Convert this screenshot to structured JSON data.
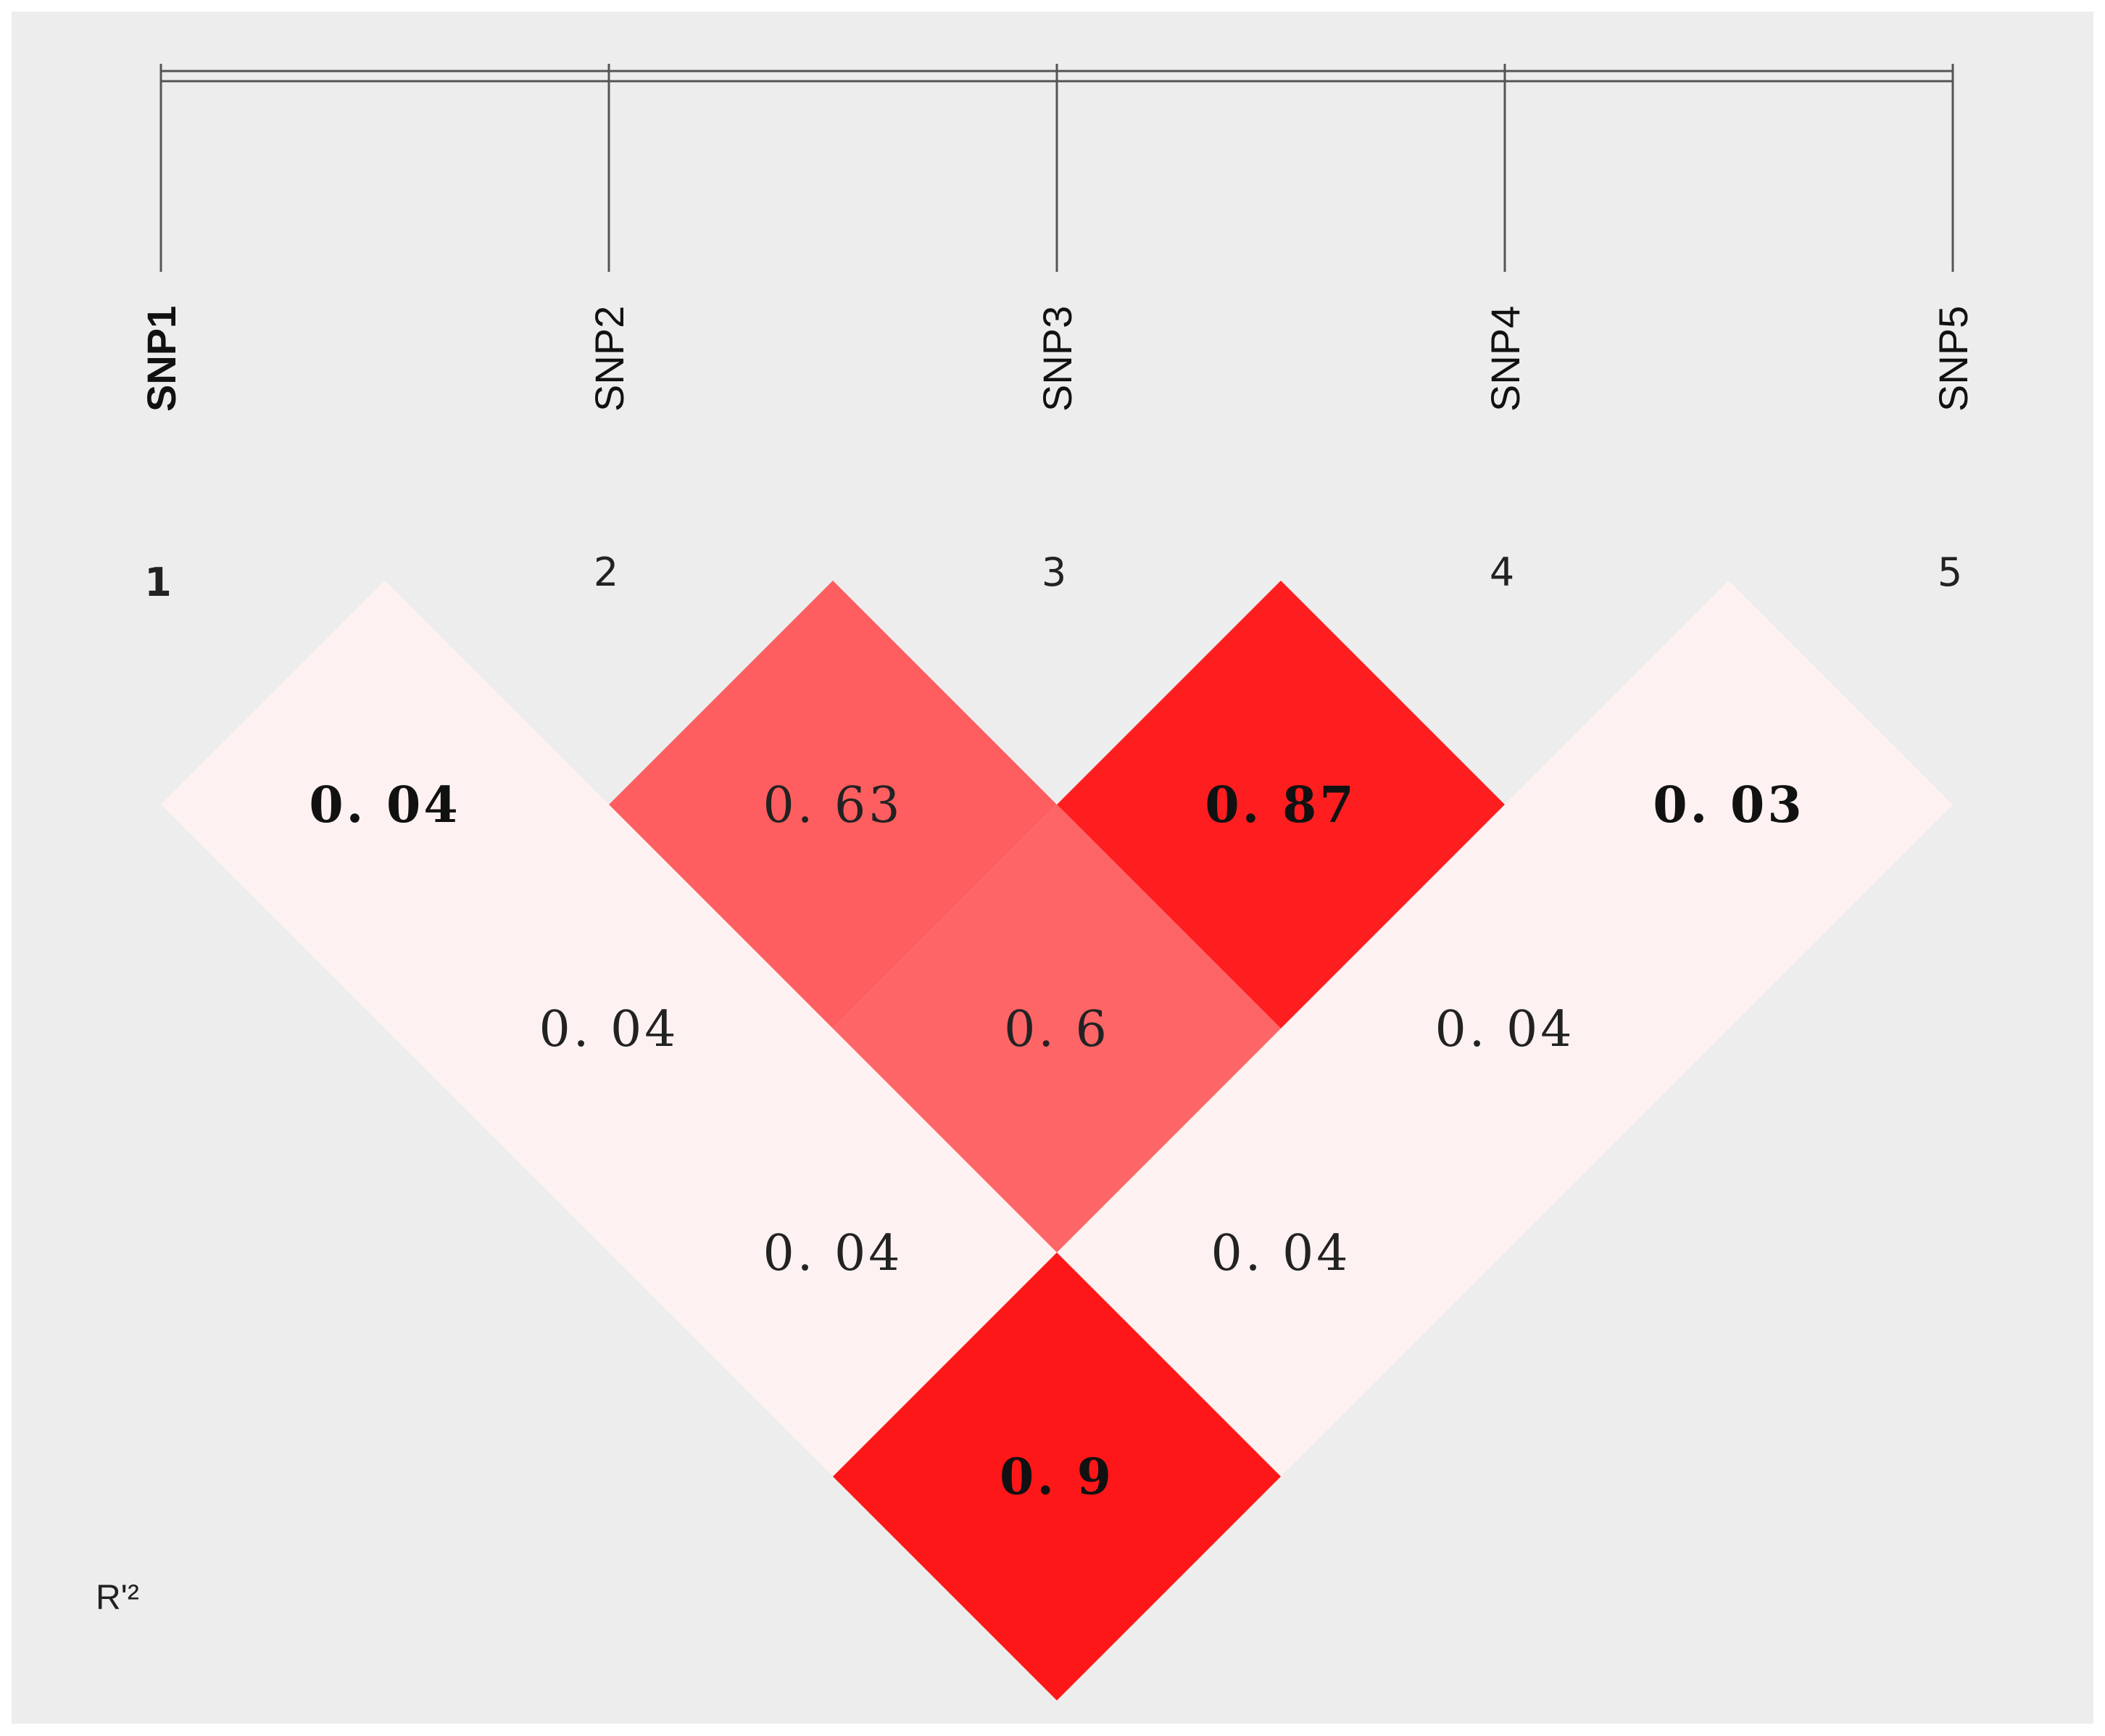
{
  "chart_data": {
    "type": "heatmap",
    "markers": [
      "SNP1",
      "SNP2",
      "SNP3",
      "SNP4",
      "SNP5"
    ],
    "indices": [
      "1",
      "2",
      "3",
      "4",
      "5"
    ],
    "legend_label": "R'²",
    "cells": [
      {
        "i": 1,
        "j": 2,
        "value": 0.04,
        "label": "0. 04",
        "color": "#fdf2f1",
        "bold": true
      },
      {
        "i": 2,
        "j": 3,
        "value": 0.63,
        "label": "0. 63",
        "color": "#fe5e5f",
        "bold": false
      },
      {
        "i": 3,
        "j": 4,
        "value": 0.87,
        "label": "0. 87",
        "color": "#fe1e20",
        "bold": true
      },
      {
        "i": 4,
        "j": 5,
        "value": 0.03,
        "label": "0. 03",
        "color": "#fdf2f1",
        "bold": true
      },
      {
        "i": 1,
        "j": 3,
        "value": 0.04,
        "label": "0. 04",
        "color": "#fdf2f1",
        "bold": false
      },
      {
        "i": 2,
        "j": 4,
        "value": 0.6,
        "label": "0. 6",
        "color": "#fe6566",
        "bold": false
      },
      {
        "i": 3,
        "j": 5,
        "value": 0.04,
        "label": "0. 04",
        "color": "#fdf2f1",
        "bold": false
      },
      {
        "i": 1,
        "j": 4,
        "value": 0.04,
        "label": "0. 04",
        "color": "#fdf2f1",
        "bold": false
      },
      {
        "i": 2,
        "j": 5,
        "value": 0.04,
        "label": "0. 04",
        "color": "#fdf2f1",
        "bold": false
      },
      {
        "i": 1,
        "j": 5,
        "value": 0.9,
        "label": "0. 9",
        "color": "#fe1719",
        "bold": true
      }
    ]
  },
  "colors": {
    "background": "#ededed",
    "ruler": "#555555",
    "text": "#222222"
  }
}
